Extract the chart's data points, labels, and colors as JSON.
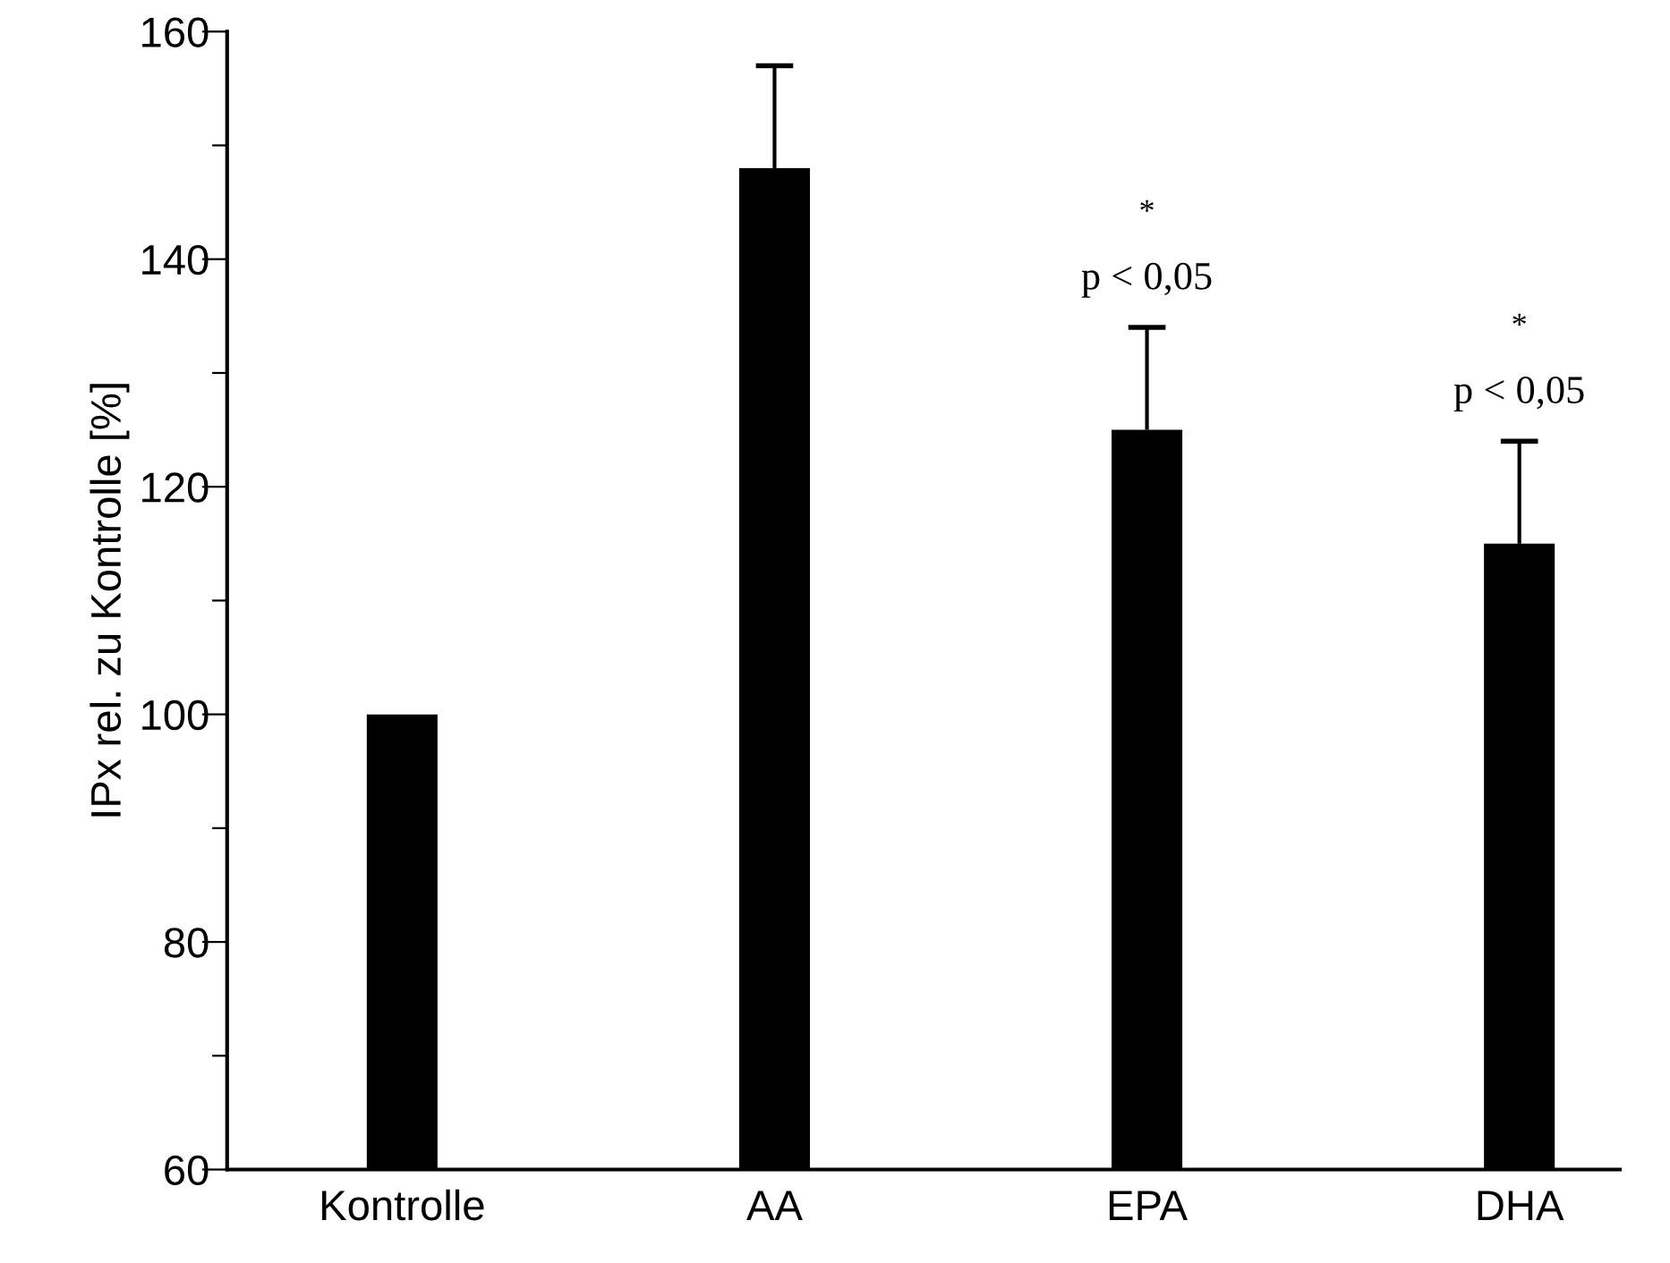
{
  "chart_data": {
    "type": "bar",
    "ylabel": "IPx rel. zu Kontrolle [%]",
    "categories": [
      "Kontrolle",
      "AA",
      "EPA",
      "DHA"
    ],
    "values": [
      100,
      148,
      125,
      115
    ],
    "color": "#000000",
    "errors": [
      null,
      [
        148,
        157
      ],
      [
        125,
        134
      ],
      [
        115,
        124
      ]
    ],
    "ylim": [
      60,
      160
    ],
    "yticks": [
      60,
      {
        "value": 70,
        "label": null
      },
      80,
      {
        "value": 90,
        "label": null
      },
      100,
      {
        "value": 110,
        "label": null
      },
      120,
      {
        "value": 130,
        "label": null
      },
      140,
      {
        "value": 150,
        "label": null
      },
      160
    ],
    "annotations": [
      "*",
      "p < 0,05",
      "*",
      "p < 0,05"
    ],
    "grid": false,
    "legend": false
  }
}
